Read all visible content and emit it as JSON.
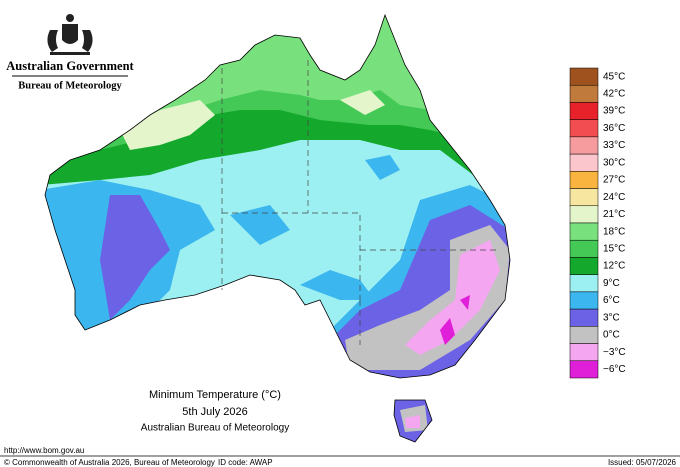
{
  "header": {
    "government": "Australian Government",
    "agency": "Bureau of Meteorology"
  },
  "map": {
    "title": "Minimum Temperature (°C)",
    "date": "5th July 2026",
    "source": "Australian Bureau of Meteorology"
  },
  "legend": {
    "items": [
      {
        "label": "45°C",
        "color": "#a0521e"
      },
      {
        "label": "42°C",
        "color": "#c07a3c"
      },
      {
        "label": "39°C",
        "color": "#e8222a"
      },
      {
        "label": "36°C",
        "color": "#f24e52"
      },
      {
        "label": "33°C",
        "color": "#f79c9e"
      },
      {
        "label": "30°C",
        "color": "#fbc6cc"
      },
      {
        "label": "27°C",
        "color": "#f8b43e"
      },
      {
        "label": "24°C",
        "color": "#f6e6a0"
      },
      {
        "label": "21°C",
        "color": "#e4f5cc"
      },
      {
        "label": "18°C",
        "color": "#78e07c"
      },
      {
        "label": "15°C",
        "color": "#44c956"
      },
      {
        "label": "12°C",
        "color": "#14a82c"
      },
      {
        "label": "9°C",
        "color": "#9cf0f2"
      },
      {
        "label": "6°C",
        "color": "#3cb6ee"
      },
      {
        "label": "3°C",
        "color": "#6c62e6"
      },
      {
        "label": "0°C",
        "color": "#c2c2c2"
      },
      {
        "label": "−3°C",
        "color": "#f4a6f0"
      },
      {
        "label": "−6°C",
        "color": "#e020d8"
      }
    ]
  },
  "footer": {
    "url": "http://www.bom.gov.au",
    "copyright": "© Commonwealth of Australia 2026, Bureau of Meteorology",
    "id_code": "ID code: AWAP",
    "issued": "Issued: 05/07/2026"
  }
}
